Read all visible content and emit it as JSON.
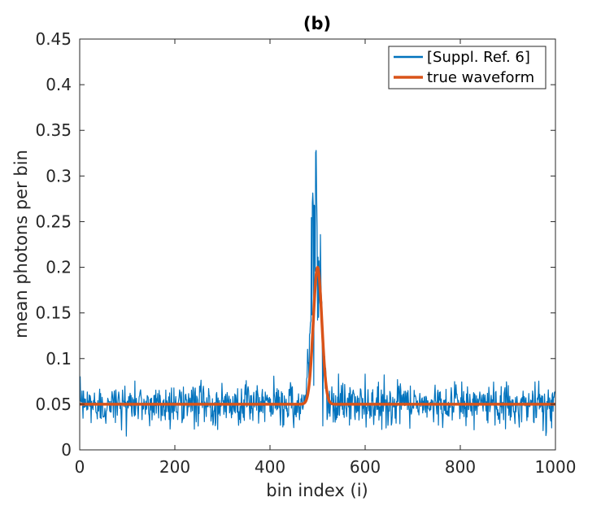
{
  "chart_data": {
    "type": "line",
    "title": "(b)",
    "xlabel": "bin index (i)",
    "ylabel": "mean photons per bin",
    "xlim": [
      0,
      1000
    ],
    "ylim": [
      0,
      0.45
    ],
    "x_ticks": [
      0,
      200,
      400,
      600,
      800,
      1000
    ],
    "x_tick_labels": [
      "0",
      "200",
      "400",
      "600",
      "800",
      "1000"
    ],
    "y_ticks": [
      0,
      0.05,
      0.1,
      0.15,
      0.2,
      0.25,
      0.3,
      0.35,
      0.4,
      0.45
    ],
    "y_tick_labels": [
      "0",
      "0.05",
      "0.1",
      "0.15",
      "0.2",
      "0.25",
      "0.3",
      "0.35",
      "0.4",
      "0.45"
    ],
    "legend_position": "top-right",
    "series": [
      {
        "name": "[Suppl. Ref. 6]",
        "color": "#0072BD",
        "style": "noisy estimate",
        "n_points": 1000,
        "baseline": 0.05,
        "noise_range": [
          0.015,
          0.097
        ],
        "peak_x": 497,
        "peak_max": 0.328
      },
      {
        "name": "true waveform",
        "color": "#D95319",
        "style": "gaussian pulse",
        "n_points": 1000,
        "baseline": 0.05,
        "peak_x": 500,
        "peak_value": 0.2,
        "sigma": 9
      }
    ]
  }
}
